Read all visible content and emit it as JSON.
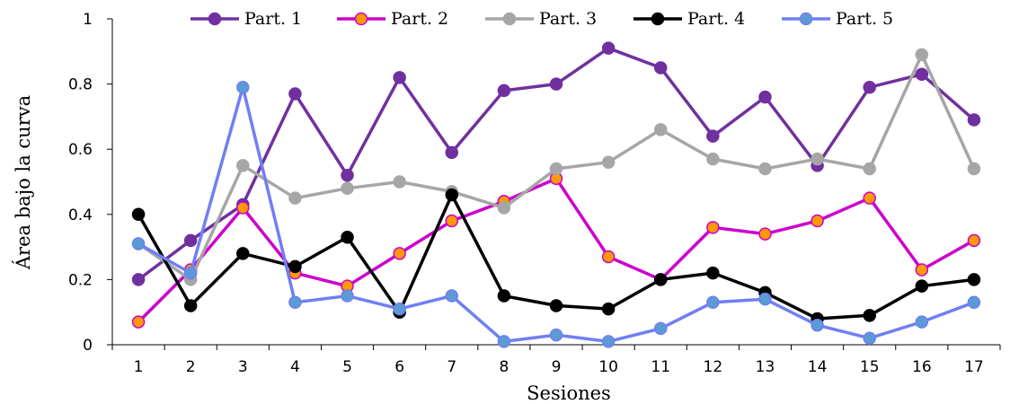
{
  "chart_data": {
    "type": "line",
    "xlabel": "Sesiones",
    "ylabel": "Área bajo la curva",
    "categories": [
      "1",
      "2",
      "3",
      "4",
      "5",
      "6",
      "7",
      "8",
      "9",
      "10",
      "11",
      "12",
      "13",
      "14",
      "15",
      "16",
      "17"
    ],
    "ylim": [
      0,
      1
    ],
    "yticks": [
      "0",
      "0.2",
      "0.4",
      "0.6",
      "0.8",
      "1"
    ],
    "grid": false,
    "legend_position": "top",
    "series": [
      {
        "name": "Part. 1",
        "color": "#7030a0",
        "marker_fill": "#7030a0",
        "values": [
          0.2,
          0.32,
          0.43,
          0.77,
          0.52,
          0.82,
          0.59,
          0.78,
          0.8,
          0.91,
          0.85,
          0.64,
          0.76,
          0.55,
          0.79,
          0.83,
          0.69
        ]
      },
      {
        "name": "Part. 2",
        "color": "#cc00cc",
        "marker_fill": "#ff9900",
        "values": [
          0.07,
          0.23,
          0.42,
          0.22,
          0.18,
          0.28,
          0.38,
          0.44,
          0.51,
          0.27,
          0.2,
          0.36,
          0.34,
          0.38,
          0.45,
          0.23,
          0.32
        ]
      },
      {
        "name": "Part. 3",
        "color": "#a6a6a6",
        "marker_fill": "#a6a6a6",
        "values": [
          0.31,
          0.2,
          0.55,
          0.45,
          0.48,
          0.5,
          0.47,
          0.42,
          0.54,
          0.56,
          0.66,
          0.57,
          0.54,
          0.57,
          0.54,
          0.89,
          0.54
        ]
      },
      {
        "name": "Part. 4",
        "color": "#000000",
        "marker_fill": "#000000",
        "values": [
          0.4,
          0.12,
          0.28,
          0.24,
          0.33,
          0.1,
          0.46,
          0.15,
          0.12,
          0.11,
          0.2,
          0.22,
          0.16,
          0.08,
          0.09,
          0.18,
          0.2
        ]
      },
      {
        "name": "Part. 5",
        "color": "#6f7ff3",
        "marker_fill": "#5b9bd5",
        "values": [
          0.31,
          0.22,
          0.79,
          0.13,
          0.15,
          0.11,
          0.15,
          0.01,
          0.03,
          0.01,
          0.05,
          0.13,
          0.14,
          0.06,
          0.02,
          0.07,
          0.13
        ]
      }
    ]
  }
}
